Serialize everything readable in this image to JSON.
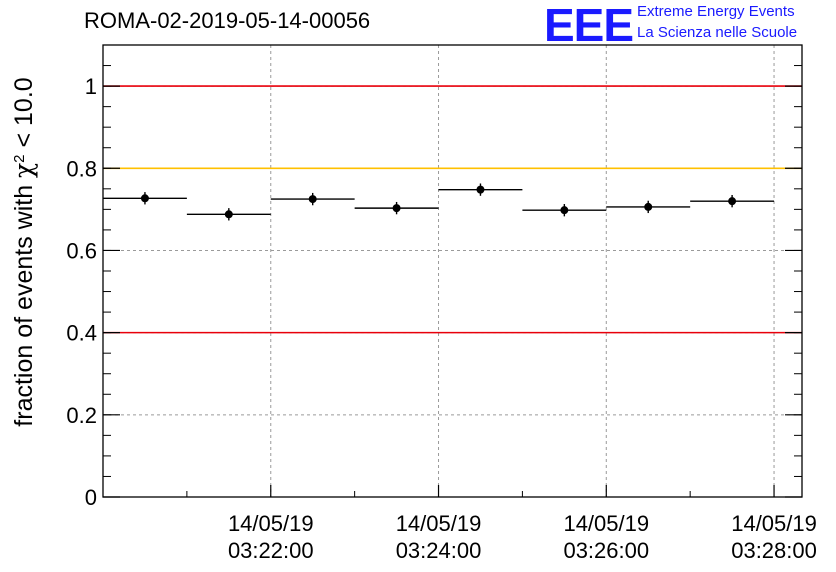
{
  "header": {
    "title": "ROMA-02-2019-05-14-00056",
    "logo_mark": "EEE",
    "logo_line1": "Extreme Energy Events",
    "logo_line2": "La Scienza nelle Scuole"
  },
  "colors": {
    "threshold_red": "#e8000b",
    "threshold_yellow": "#ffc000",
    "marker": "#000000",
    "grid": "#999999",
    "logo": "#1a1aff"
  },
  "chart_data": {
    "type": "scatter",
    "title": "ROMA-02-2019-05-14-00056",
    "ylabel": "fraction of events with χ² < 10.0",
    "xlabel": "",
    "ylim": [
      0,
      1.1
    ],
    "xlim": [
      "03:20:00",
      "03:28:20"
    ],
    "yticks": [
      "0",
      "0.2",
      "0.4",
      "0.6",
      "0.8",
      "1"
    ],
    "xticks": [
      {
        "date": "14/05/19",
        "time": "03:22:00"
      },
      {
        "date": "14/05/19",
        "time": "03:24:00"
      },
      {
        "date": "14/05/19",
        "time": "03:26:00"
      },
      {
        "date": "14/05/19",
        "time": "03:28:00"
      }
    ],
    "grid": true,
    "series": [
      {
        "points": [
          {
            "x_start": "03:20:00",
            "x_end": "03:21:00",
            "y": 0.727,
            "yerr": 0.015
          },
          {
            "x_start": "03:21:00",
            "x_end": "03:22:00",
            "y": 0.688,
            "yerr": 0.015
          },
          {
            "x_start": "03:22:00",
            "x_end": "03:23:00",
            "y": 0.725,
            "yerr": 0.015
          },
          {
            "x_start": "03:23:00",
            "x_end": "03:24:00",
            "y": 0.703,
            "yerr": 0.015
          },
          {
            "x_start": "03:24:00",
            "x_end": "03:25:00",
            "y": 0.748,
            "yerr": 0.015
          },
          {
            "x_start": "03:25:00",
            "x_end": "03:26:00",
            "y": 0.698,
            "yerr": 0.015
          },
          {
            "x_start": "03:26:00",
            "x_end": "03:27:00",
            "y": 0.706,
            "yerr": 0.015
          },
          {
            "x_start": "03:27:00",
            "x_end": "03:28:00",
            "y": 0.72,
            "yerr": 0.015
          }
        ]
      }
    ],
    "reference_lines": [
      {
        "y": 1.0,
        "color": "#e8000b"
      },
      {
        "y": 0.8,
        "color": "#ffc000"
      },
      {
        "y": 0.4,
        "color": "#e8000b"
      }
    ]
  }
}
